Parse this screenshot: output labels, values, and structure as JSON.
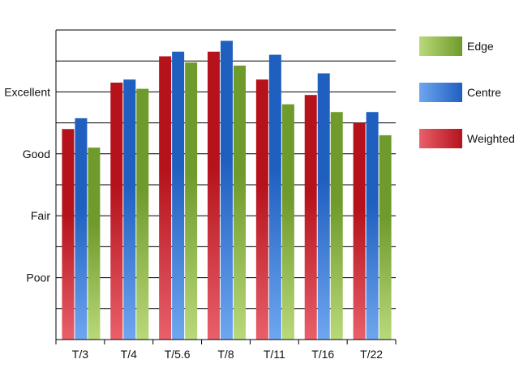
{
  "chart_data": {
    "type": "bar",
    "title": "",
    "xlabel": "",
    "ylabel": "",
    "categories": [
      "T/3",
      "T/4",
      "T/5.6",
      "T/8",
      "T/11",
      "T/16",
      "T/22"
    ],
    "y_ticks": [
      {
        "label": "Poor",
        "value": 2
      },
      {
        "label": "Fair",
        "value": 4
      },
      {
        "label": "Good",
        "value": 6
      },
      {
        "label": "Excellent",
        "value": 8
      }
    ],
    "ylim": [
      0,
      10
    ],
    "grid": true,
    "legend_position": "right",
    "series": [
      {
        "name": "Weighted",
        "color": "#b5121b",
        "light": "#e8606b",
        "values": [
          6.8,
          8.3,
          9.15,
          9.3,
          8.4,
          7.9,
          7.0
        ]
      },
      {
        "name": "Centre",
        "color": "#1f5fc0",
        "light": "#6ea6ef",
        "values": [
          7.15,
          8.4,
          9.3,
          9.65,
          9.2,
          8.6,
          7.35
        ]
      },
      {
        "name": "Edge",
        "color": "#6f9a2c",
        "light": "#b9d97a",
        "values": [
          6.2,
          8.1,
          8.95,
          8.85,
          7.6,
          7.35,
          6.6
        ]
      }
    ],
    "legend_order": [
      "Edge",
      "Centre",
      "Weighted"
    ]
  }
}
